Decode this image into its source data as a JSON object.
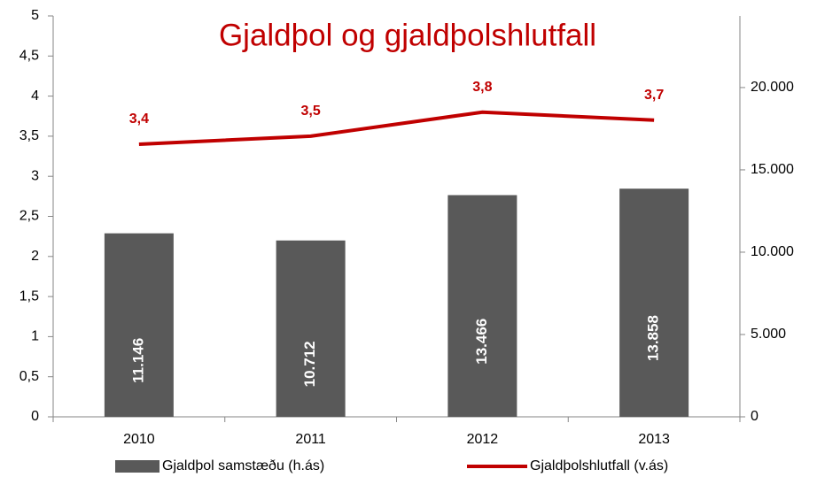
{
  "chart_data": {
    "type": "bar_line",
    "title": "Gjaldþol og gjaldþolshlutfall",
    "categories": [
      "2010",
      "2011",
      "2012",
      "2013"
    ],
    "series": [
      {
        "name": "Gjaldþol samstæðu (h.ás)",
        "type": "bar",
        "axis": "y2",
        "color": "#595959",
        "values": [
          11146,
          10712,
          13466,
          13858
        ],
        "value_labels": [
          "11.146",
          "10.712",
          "13.466",
          "13.858"
        ]
      },
      {
        "name": "Gjaldþolshlutfall (v.ás)",
        "type": "line",
        "axis": "y",
        "color": "#c00000",
        "values": [
          3.4,
          3.5,
          3.8,
          3.7
        ],
        "value_labels": [
          "3,4",
          "3,5",
          "3,8",
          "3,7"
        ]
      }
    ],
    "ylim": [
      0,
      5
    ],
    "yticks": [
      0,
      {
        "value": 0.5,
        "label": "0,5"
      },
      1,
      {
        "value": 1.5,
        "label": "1,5"
      },
      2,
      {
        "value": 2.5,
        "label": "2,5"
      },
      3,
      {
        "value": 3.5,
        "label": "3,5"
      },
      4,
      {
        "value": 4.5,
        "label": "4,5"
      },
      5
    ],
    "y2lim": [
      0,
      24350
    ],
    "y2ticks": [
      0,
      {
        "value": 5000,
        "label": "5.000"
      },
      {
        "value": 10000,
        "label": "10.000"
      },
      {
        "value": 15000,
        "label": "15.000"
      },
      {
        "value": 20000,
        "label": "20.000"
      }
    ],
    "legend": "bottom"
  }
}
